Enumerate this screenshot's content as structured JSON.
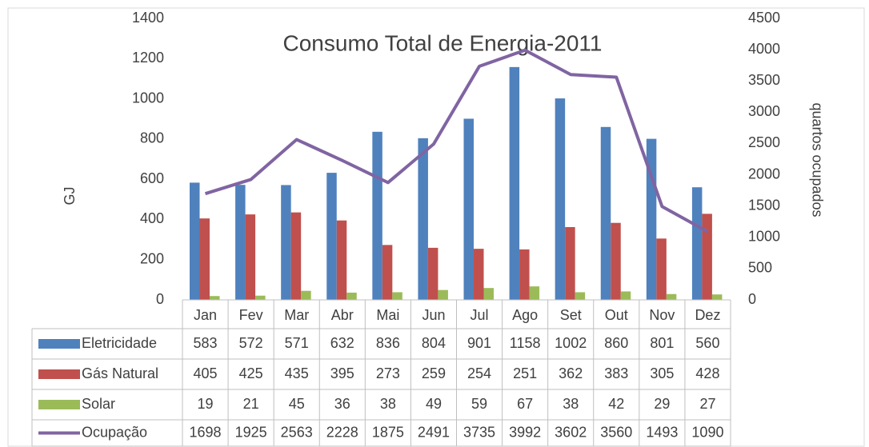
{
  "chart_data": {
    "type": "bar",
    "title": "Consumo Total de Energia-2011",
    "y_label": "GJ",
    "y2_label": "quartos ocupados",
    "categories": [
      "Jan",
      "Fev",
      "Mar",
      "Abr",
      "Mai",
      "Jun",
      "Jul",
      "Ago",
      "Set",
      "Out",
      "Nov",
      "Dez"
    ],
    "series": [
      {
        "name": "Eletricidade",
        "color": "#4f81bd",
        "type": "bar",
        "values": [
          583,
          572,
          571,
          632,
          836,
          804,
          901,
          1158,
          1002,
          860,
          801,
          560
        ]
      },
      {
        "name": "Gás Natural",
        "color": "#c0504d",
        "type": "bar",
        "values": [
          405,
          425,
          435,
          395,
          273,
          259,
          254,
          251,
          362,
          383,
          305,
          428
        ]
      },
      {
        "name": "Solar",
        "color": "#9bbb59",
        "type": "bar",
        "values": [
          19,
          21,
          45,
          36,
          38,
          49,
          59,
          67,
          38,
          42,
          29,
          27
        ]
      },
      {
        "name": "Ocupação",
        "color": "#8064a2",
        "type": "line",
        "axis": "y2",
        "values": [
          1698,
          1925,
          2563,
          2228,
          1875,
          2491,
          3735,
          3992,
          3602,
          3560,
          1493,
          1090
        ]
      }
    ],
    "ylim": [
      0,
      1400
    ],
    "yticks": [
      0,
      200,
      400,
      600,
      800,
      1000,
      1200,
      1400
    ],
    "y2lim": [
      0,
      4500
    ],
    "y2ticks": [
      0,
      500,
      1000,
      1500,
      2000,
      2500,
      3000,
      3500,
      4000,
      4500
    ],
    "data_table": true
  }
}
